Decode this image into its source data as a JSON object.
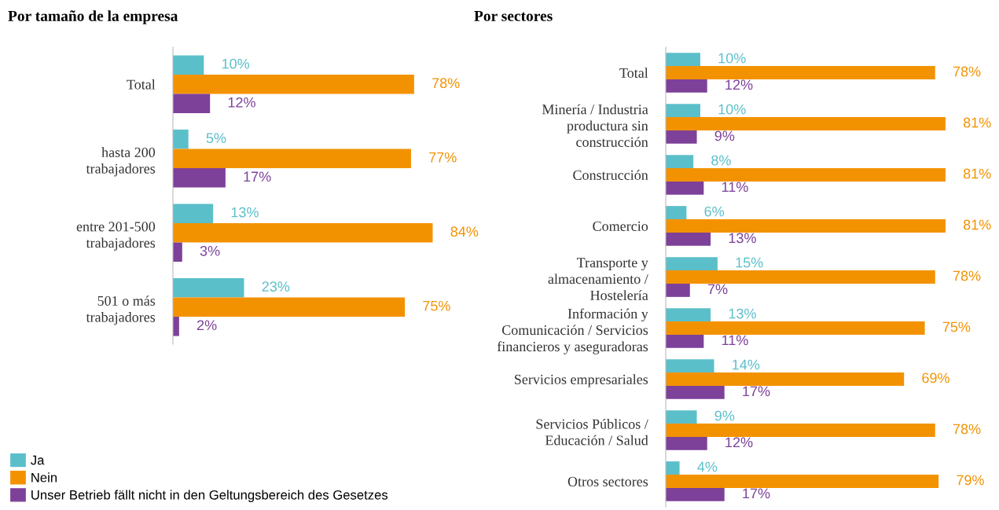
{
  "chart_data": [
    {
      "type": "bar",
      "orientation": "horizontal",
      "title": "Por tamaño de la empresa",
      "legend": "bottom left",
      "grid": false,
      "categories": [
        "Total",
        "hasta 200\ntrabajadores",
        "entre 201-500\ntrabajadores",
        "501 o más\ntrabajadores"
      ],
      "series": [
        {
          "name": "Ja",
          "color": "#5bbfca",
          "values": [
            10,
            5,
            13,
            23
          ],
          "value_labels": [
            "10%",
            "5%",
            "13%",
            "23%"
          ]
        },
        {
          "name": "Nein",
          "color": "#f39200",
          "values": [
            78,
            77,
            84,
            75
          ],
          "value_labels": [
            "78%",
            "77%",
            "84%",
            "75%"
          ]
        },
        {
          "name": "Unser Betrieb fällt nicht in den Geltungsbereich des Gesetzes",
          "color": "#7d4199",
          "values": [
            12,
            17,
            3,
            2
          ],
          "value_labels": [
            "12%",
            "17%",
            "3%",
            "2%"
          ]
        }
      ]
    },
    {
      "type": "bar",
      "orientation": "horizontal",
      "title": "Por sectores",
      "grid": false,
      "categories": [
        "Total",
        "Minería / Industria\nproductura sin\nconstrucción",
        "Construcción",
        "Comercio",
        "Transporte y\nalmacenamiento /\nHostelería",
        "Información y\nComunicación / Servicios\nfinancieros y aseguradoras",
        "Servicios empresariales",
        "Servicios Públicos /\nEducación / Salud",
        "Otros sectores"
      ],
      "series": [
        {
          "color": "#5bbfca",
          "values": [
            10,
            10,
            8,
            6,
            15,
            13,
            14,
            9,
            4
          ],
          "value_labels": [
            "10%",
            "10%",
            "8%",
            "6%",
            "15%",
            "13%",
            "14%",
            "9%",
            "4%"
          ]
        },
        {
          "color": "#f39200",
          "values": [
            78,
            81,
            81,
            81,
            78,
            75,
            69,
            78,
            79
          ],
          "value_labels": [
            "78%",
            "81%",
            "81%",
            "81%",
            "78%",
            "75%",
            "69%",
            "78%",
            "79%"
          ]
        },
        {
          "color": "#7d4199",
          "values": [
            12,
            9,
            11,
            13,
            7,
            11,
            17,
            12,
            17
          ],
          "value_labels": [
            "12%",
            "9%",
            "11%",
            "13%",
            "7%",
            "11%",
            "17%",
            "12%",
            "17%"
          ]
        }
      ]
    }
  ]
}
